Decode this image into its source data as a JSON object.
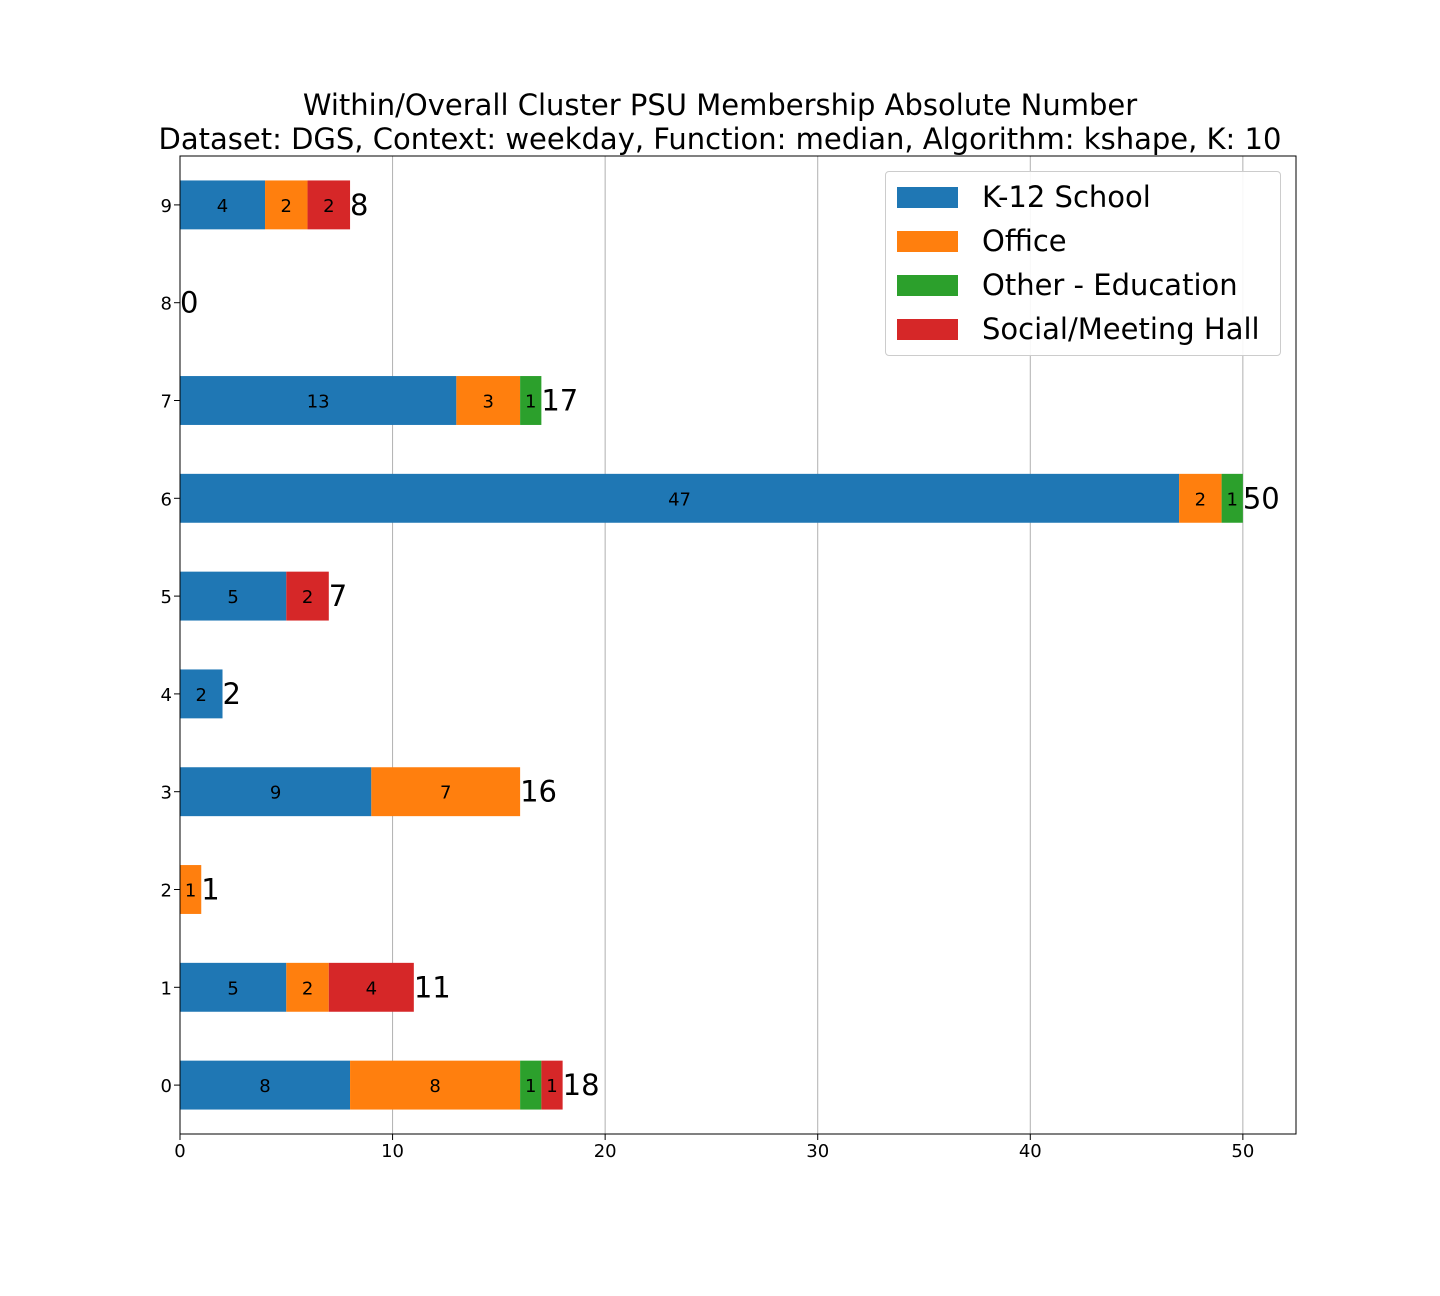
{
  "title_line1": "Within/Overall Cluster PSU Membership Absolute Number",
  "title_line2": "Dataset: DGS, Context: weekday, Function: median, Algorithm: kshape, K: 10",
  "chart_data": {
    "type": "bar",
    "orientation": "horizontal",
    "stacked": true,
    "categories": [
      "0",
      "1",
      "2",
      "3",
      "4",
      "5",
      "6",
      "7",
      "8",
      "9"
    ],
    "series": [
      {
        "name": "K-12 School",
        "color": "#1f77b4",
        "values": [
          8,
          5,
          0,
          9,
          2,
          5,
          47,
          13,
          0,
          4
        ]
      },
      {
        "name": "Office",
        "color": "#ff7f0e",
        "values": [
          8,
          2,
          1,
          7,
          0,
          0,
          2,
          3,
          0,
          2
        ]
      },
      {
        "name": "Other - Education",
        "color": "#2ca02c",
        "values": [
          1,
          0,
          0,
          0,
          0,
          0,
          1,
          1,
          0,
          0
        ]
      },
      {
        "name": "Social/Meeting Hall",
        "color": "#d62728",
        "values": [
          1,
          4,
          0,
          0,
          0,
          2,
          0,
          0,
          0,
          2
        ]
      }
    ],
    "totals": [
      18,
      11,
      1,
      16,
      2,
      7,
      50,
      17,
      0,
      8
    ],
    "xticks": [
      "0",
      "10",
      "20",
      "30",
      "40",
      "50"
    ],
    "xlim": [
      0,
      52.5
    ],
    "xgrid": true,
    "legend_position": "top-right"
  }
}
